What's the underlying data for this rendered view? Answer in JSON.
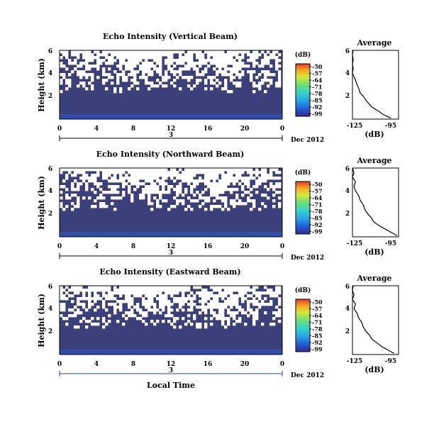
{
  "chart_data": [
    {
      "type": "heatmap",
      "title": "Echo Intensity (Vertical Beam)",
      "ylabel": "Height (km)",
      "xlabel": "",
      "x_ticks": [
        "0",
        "4",
        "8",
        "12",
        "16",
        "20",
        "0"
      ],
      "y_ticks": [
        "6",
        "4",
        "2"
      ],
      "day_label": "3",
      "month_label": "Dec 2012",
      "colorbar": {
        "unit": "(dB)",
        "ticks": [
          "-50",
          "-57",
          "-64",
          "-71",
          "-78",
          "-85",
          "-92",
          "-99"
        ]
      },
      "average": {
        "title": "Average",
        "xlabel": "(dB)",
        "x_ticks": [
          "-125",
          "-95"
        ],
        "y_ticks": [
          "6",
          "4",
          "2"
        ],
        "xlim": [
          -125,
          -95
        ],
        "ylim": [
          0,
          6
        ],
        "profile": [
          [
            -100,
            0.1
          ],
          [
            -105,
            0.4
          ],
          [
            -108,
            0.7
          ],
          [
            -112,
            1.0
          ],
          [
            -114,
            1.3
          ],
          [
            -116,
            1.6
          ],
          [
            -118,
            2.0
          ],
          [
            -120,
            2.3
          ],
          [
            -121,
            2.7
          ],
          [
            -122,
            3.0
          ],
          [
            -123,
            3.4
          ],
          [
            -124,
            3.7
          ],
          [
            -125,
            4.0
          ],
          [
            -124.5,
            4.4
          ],
          [
            -125,
            4.8
          ],
          [
            -124.5,
            5.2
          ],
          [
            -125,
            5.6
          ],
          [
            -124.6,
            6.0
          ]
        ]
      }
    },
    {
      "type": "heatmap",
      "title": "Echo Intensity (Northward Beam)",
      "ylabel": "Height (km)",
      "xlabel": "",
      "x_ticks": [
        "0",
        "4",
        "8",
        "12",
        "16",
        "20",
        "0"
      ],
      "y_ticks": [
        "6",
        "4",
        "2"
      ],
      "day_label": "3",
      "month_label": "Dec 2012",
      "colorbar": {
        "unit": "(dB)",
        "ticks": [
          "-50",
          "-57",
          "-64",
          "-71",
          "-78",
          "-85",
          "-92",
          "-99"
        ]
      },
      "average": {
        "title": "Average",
        "xlabel": "(dB)",
        "x_ticks": [
          "-125",
          "-95"
        ],
        "y_ticks": [
          "6",
          "4",
          "2"
        ],
        "xlim": [
          -125,
          -95
        ],
        "ylim": [
          0,
          6
        ],
        "profile": [
          [
            -96,
            0.1
          ],
          [
            -100,
            0.4
          ],
          [
            -104,
            0.7
          ],
          [
            -108,
            1.0
          ],
          [
            -111,
            1.3
          ],
          [
            -113,
            1.7
          ],
          [
            -115,
            2.0
          ],
          [
            -117,
            2.4
          ],
          [
            -118,
            2.8
          ],
          [
            -120,
            3.2
          ],
          [
            -121,
            3.6
          ],
          [
            -123,
            4.0
          ],
          [
            -124,
            4.4
          ],
          [
            -123,
            4.8
          ],
          [
            -125,
            5.2
          ],
          [
            -124,
            5.6
          ],
          [
            -125,
            6.0
          ]
        ]
      }
    },
    {
      "type": "heatmap",
      "title": "Echo Intensity (Eastward Beam)",
      "ylabel": "Height (km)",
      "xlabel": "Local Time",
      "x_ticks": [
        "0",
        "4",
        "8",
        "12",
        "16",
        "20",
        "0"
      ],
      "y_ticks": [
        "6",
        "4",
        "2"
      ],
      "day_label": "3",
      "month_label": "Dec 2012",
      "colorbar": {
        "unit": "(dB)",
        "ticks": [
          "-50",
          "-57",
          "-64",
          "-71",
          "-78",
          "-85",
          "-92",
          "-99"
        ]
      },
      "average": {
        "title": "Average",
        "xlabel": "(dB)",
        "x_ticks": [
          "-125",
          "-95"
        ],
        "y_ticks": [
          "6",
          "4",
          "2"
        ],
        "xlim": [
          -125,
          -95
        ],
        "ylim": [
          0,
          6
        ],
        "profile": [
          [
            -98,
            0.1
          ],
          [
            -102,
            0.4
          ],
          [
            -106,
            0.7
          ],
          [
            -109,
            1.0
          ],
          [
            -112,
            1.3
          ],
          [
            -114,
            1.7
          ],
          [
            -116,
            2.0
          ],
          [
            -118,
            2.4
          ],
          [
            -119,
            2.8
          ],
          [
            -121,
            3.2
          ],
          [
            -122,
            3.6
          ],
          [
            -124,
            4.0
          ],
          [
            -123,
            4.4
          ],
          [
            -125,
            4.8
          ],
          [
            -124,
            5.2
          ],
          [
            -125,
            5.6
          ],
          [
            -124.5,
            6.0
          ]
        ]
      }
    }
  ],
  "colors": {
    "background_echo": "#3b3f7a",
    "colorbar_stops": [
      "#3a2a8a",
      "#1f5fd6",
      "#2aa6e8",
      "#37d3c8",
      "#6be07a",
      "#d6e83a",
      "#f5a623",
      "#e8362a"
    ]
  }
}
